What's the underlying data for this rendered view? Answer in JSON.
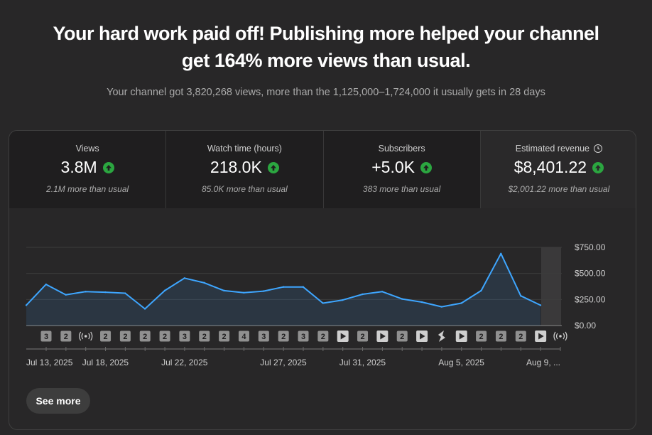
{
  "headline": {
    "line1": "Your hard work paid off! Publishing more helped your channel",
    "line2": "get 164% more views than usual."
  },
  "subline": "Your channel got 3,820,268 views, more than the 1,125,000–1,724,000 it usually gets in 28 days",
  "metrics": [
    {
      "label": "Views",
      "value": "3.8M",
      "note": "2.1M more than usual"
    },
    {
      "label": "Watch time (hours)",
      "value": "218.0K",
      "note": "85.0K more than usual"
    },
    {
      "label": "Subscribers",
      "value": "+5.0K",
      "note": "383 more than usual"
    },
    {
      "label": "Estimated revenue",
      "value": "$8,401.22",
      "note": "$2,001.22 more than usual"
    }
  ],
  "colors": {
    "line": "#3ea6ff",
    "up": "#2ba640",
    "marker": "#909090"
  },
  "chart_data": {
    "type": "area",
    "y_unit": "Estimated revenue",
    "ylim": [
      0,
      750
    ],
    "y_ticks": [
      "$0.00",
      "$250.00",
      "$500.00",
      "$750.00"
    ],
    "y_tick_values": [
      0,
      250,
      500,
      750
    ],
    "x_tick_labels": [
      "Jul 13, 2025",
      "Jul 18, 2025",
      "Jul 22, 2025",
      "Jul 27, 2025",
      "Jul 31, 2025",
      "Aug 5, 2025",
      "Aug 9, ..."
    ],
    "x_tick_days": [
      0,
      4,
      8,
      13,
      17,
      22,
      26
    ],
    "days": 27,
    "values": [
      195,
      395,
      295,
      325,
      320,
      310,
      160,
      335,
      455,
      410,
      335,
      315,
      330,
      370,
      370,
      215,
      245,
      300,
      325,
      255,
      225,
      180,
      215,
      335,
      690,
      285,
      195
    ],
    "grid": true,
    "markers": [
      "3",
      "2",
      "live",
      "2",
      "2",
      "2",
      "2",
      "3",
      "2",
      "2",
      "4",
      "3",
      "2",
      "3",
      "2",
      "play",
      "2",
      "play",
      "2",
      "play",
      "shorts",
      "play",
      "2",
      "2",
      "2",
      "play",
      "live"
    ]
  },
  "actions": {
    "see_more": "See more"
  }
}
